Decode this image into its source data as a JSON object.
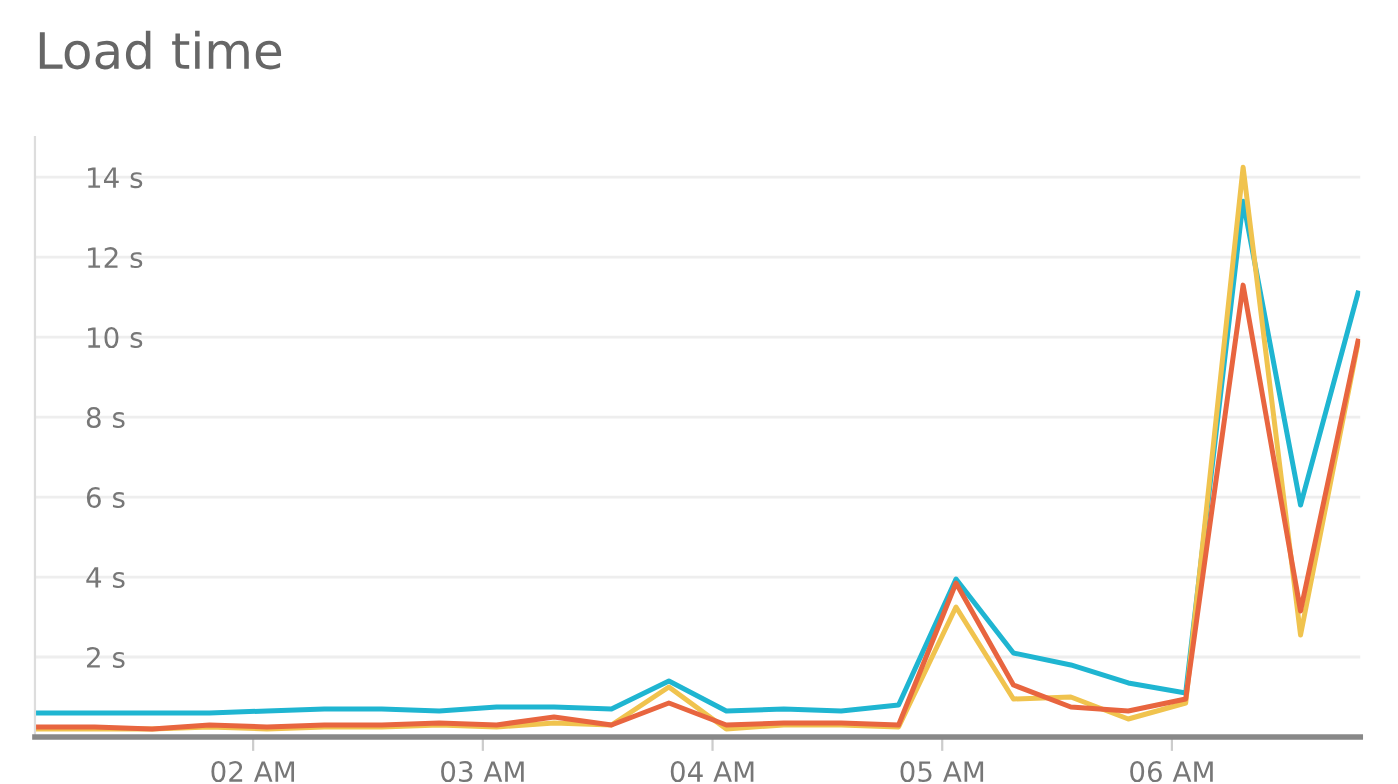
{
  "chart_data": {
    "type": "line",
    "title": "Load time",
    "x": [
      1.06,
      1.31,
      1.56,
      1.81,
      2.06,
      2.31,
      2.56,
      2.81,
      3.06,
      3.31,
      3.56,
      3.81,
      4.06,
      4.31,
      4.56,
      4.81,
      5.06,
      5.31,
      5.56,
      5.81,
      6.06,
      6.31,
      6.56,
      6.81
    ],
    "series": [
      {
        "color": "#1fb5d1",
        "values": [
          0.6,
          0.6,
          0.6,
          0.6,
          0.65,
          0.7,
          0.7,
          0.65,
          0.75,
          0.75,
          0.7,
          1.4,
          0.65,
          0.7,
          0.65,
          0.8,
          3.95,
          2.1,
          1.8,
          1.35,
          1.1,
          13.4,
          5.8,
          11.1
        ]
      },
      {
        "color": "#f0c34e",
        "values": [
          0.2,
          0.2,
          0.2,
          0.25,
          0.2,
          0.25,
          0.25,
          0.3,
          0.25,
          0.35,
          0.3,
          1.25,
          0.2,
          0.3,
          0.3,
          0.25,
          3.25,
          0.95,
          1.0,
          0.45,
          0.85,
          14.25,
          2.55,
          9.85
        ]
      },
      {
        "color": "#e8653f",
        "values": [
          0.25,
          0.25,
          0.2,
          0.3,
          0.25,
          0.3,
          0.3,
          0.35,
          0.3,
          0.5,
          0.3,
          0.85,
          0.3,
          0.35,
          0.35,
          0.3,
          3.85,
          1.3,
          0.75,
          0.65,
          0.95,
          11.3,
          3.15,
          9.9
        ]
      }
    ],
    "xlim": [
      1.05,
      6.82
    ],
    "xticks": [
      {
        "value": 2,
        "label": "02 AM"
      },
      {
        "value": 3,
        "label": "03 AM"
      },
      {
        "value": 4,
        "label": "04 AM"
      },
      {
        "value": 5,
        "label": "05 AM"
      },
      {
        "value": 6,
        "label": "06 AM"
      }
    ],
    "ylim": [
      0,
      15
    ],
    "yticks": [
      {
        "value": 2,
        "label": "2 s"
      },
      {
        "value": 4,
        "label": "4 s"
      },
      {
        "value": 6,
        "label": "6 s"
      },
      {
        "value": 8,
        "label": "8 s"
      },
      {
        "value": 10,
        "label": "10 s"
      },
      {
        "value": 12,
        "label": "12 s"
      },
      {
        "value": 14,
        "label": "14 s"
      }
    ],
    "grid": "y",
    "legend": false,
    "marker": "none",
    "line_style": "solid"
  }
}
